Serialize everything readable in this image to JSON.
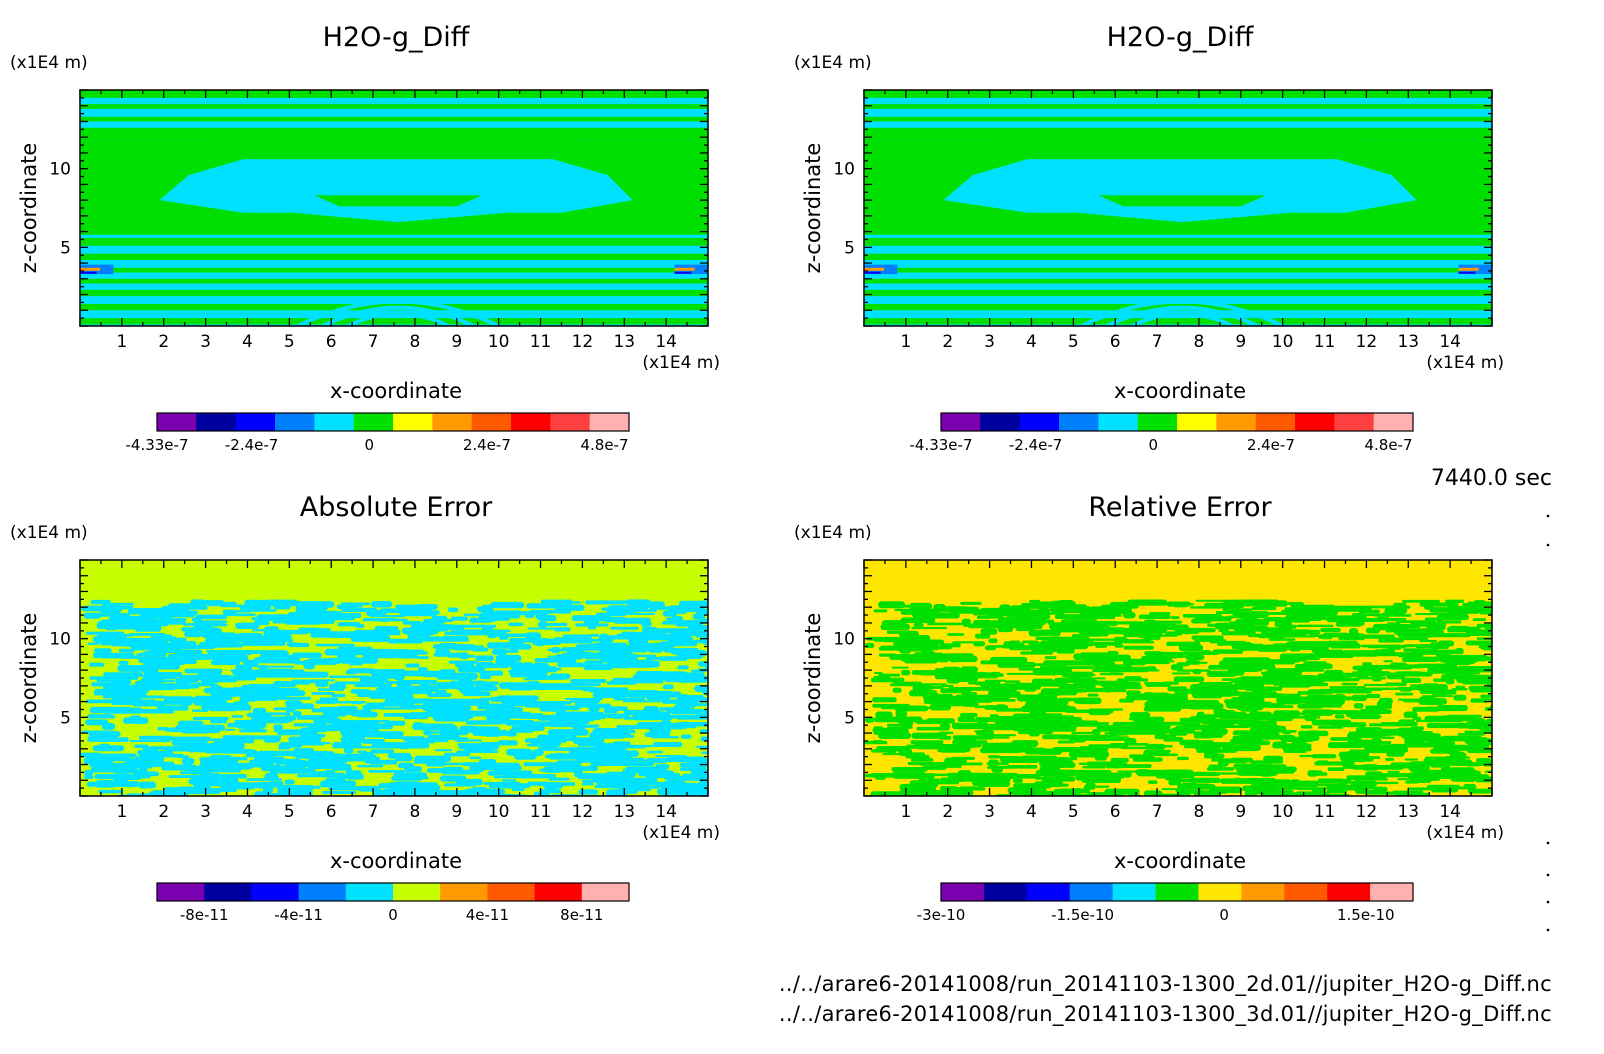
{
  "time_label": "7440.0 sec",
  "file_paths": [
    "../../arare6-20141008/run_20141103-1300_2d.01//jupiter_H2O-g_Diff.nc",
    "../../arare6-20141008/run_20141103-1300_3d.01//jupiter_H2O-g_Diff.nc"
  ],
  "chart_data": [
    {
      "type": "heatmap",
      "title": "H2O-g_Diff",
      "xlabel": "x-coordinate",
      "ylabel": "z-coordinate",
      "x_unit": "(x1E4 m)",
      "y_unit": "(x1E4 m)",
      "xlim": [
        0,
        15
      ],
      "ylim": [
        0,
        15
      ],
      "x_ticks": [
        1,
        2,
        3,
        4,
        5,
        6,
        7,
        8,
        9,
        10,
        11,
        12,
        13,
        14
      ],
      "y_ticks": [
        5,
        10
      ],
      "pattern": "layered",
      "colorbar": {
        "colors": [
          "#7b00b0",
          "#0000a0",
          "#0000ff",
          "#0080ff",
          "#00e0ff",
          "#00e000",
          "#ffff00",
          "#ff9a00",
          "#ff5a00",
          "#ff0000",
          "#ff4040",
          "#ffb0b0"
        ],
        "tick_labels": [
          "-4.33e-7",
          "-2.4e-7",
          "0",
          "2.4e-7",
          "4.8e-7"
        ],
        "tick_values": [
          -4.33e-07,
          -2.4e-07,
          0,
          2.4e-07,
          4.8e-07
        ],
        "range": [
          -4.33e-07,
          5.3e-07
        ]
      }
    },
    {
      "type": "heatmap",
      "title": "H2O-g_Diff",
      "xlabel": "x-coordinate",
      "ylabel": "z-coordinate",
      "x_unit": "(x1E4 m)",
      "y_unit": "(x1E4 m)",
      "xlim": [
        0,
        15
      ],
      "ylim": [
        0,
        15
      ],
      "x_ticks": [
        1,
        2,
        3,
        4,
        5,
        6,
        7,
        8,
        9,
        10,
        11,
        12,
        13,
        14
      ],
      "y_ticks": [
        5,
        10
      ],
      "pattern": "layered",
      "colorbar": {
        "colors": [
          "#7b00b0",
          "#0000a0",
          "#0000ff",
          "#0080ff",
          "#00e0ff",
          "#00e000",
          "#ffff00",
          "#ff9a00",
          "#ff5a00",
          "#ff0000",
          "#ff4040",
          "#ffb0b0"
        ],
        "tick_labels": [
          "-4.33e-7",
          "-2.4e-7",
          "0",
          "2.4e-7",
          "4.8e-7"
        ],
        "tick_values": [
          -4.33e-07,
          -2.4e-07,
          0,
          2.4e-07,
          4.8e-07
        ],
        "range": [
          -4.33e-07,
          5.3e-07
        ]
      }
    },
    {
      "type": "heatmap",
      "title": "Absolute Error",
      "xlabel": "x-coordinate",
      "ylabel": "z-coordinate",
      "x_unit": "(x1E4 m)",
      "y_unit": "(x1E4 m)",
      "xlim": [
        0,
        15
      ],
      "ylim": [
        0,
        15
      ],
      "x_ticks": [
        1,
        2,
        3,
        4,
        5,
        6,
        7,
        8,
        9,
        10,
        11,
        12,
        13,
        14
      ],
      "y_ticks": [
        5,
        10
      ],
      "pattern": "noise",
      "noise_colors": [
        "#c8ff00",
        "#00e0ff"
      ],
      "top_band_color": "#c8ff00",
      "top_band_from_z": 12.5,
      "colorbar": {
        "colors": [
          "#7b00b0",
          "#0000a0",
          "#0000ff",
          "#0080ff",
          "#00e0ff",
          "#c8ff00",
          "#ff9a00",
          "#ff5a00",
          "#ff0000",
          "#ffb0b0"
        ],
        "tick_labels": [
          "-8e-11",
          "-4e-11",
          "0",
          "4e-11",
          "8e-11"
        ],
        "tick_values": [
          -8e-11,
          -4e-11,
          0,
          4e-11,
          8e-11
        ],
        "range": [
          -1e-10,
          1e-10
        ]
      }
    },
    {
      "type": "heatmap",
      "title": "Relative Error",
      "xlabel": "x-coordinate",
      "ylabel": "z-coordinate",
      "x_unit": "(x1E4 m)",
      "y_unit": "(x1E4 m)",
      "xlim": [
        0,
        15
      ],
      "ylim": [
        0,
        15
      ],
      "x_ticks": [
        1,
        2,
        3,
        4,
        5,
        6,
        7,
        8,
        9,
        10,
        11,
        12,
        13,
        14
      ],
      "y_ticks": [
        5,
        10
      ],
      "pattern": "noise",
      "noise_colors": [
        "#ffe600",
        "#00e000"
      ],
      "top_band_color": "#ffe600",
      "top_band_from_z": 12.5,
      "colorbar": {
        "colors": [
          "#7b00b0",
          "#0000a0",
          "#0000ff",
          "#0080ff",
          "#00e0ff",
          "#00e000",
          "#ffe600",
          "#ff9a00",
          "#ff5a00",
          "#ff0000",
          "#ffb0b0"
        ],
        "tick_labels": [
          "-3e-10",
          "-1.5e-10",
          "0",
          "1.5e-10"
        ],
        "tick_values": [
          -3e-10,
          -1.5e-10,
          0,
          1.5e-10
        ],
        "range": [
          -3e-10,
          2e-10
        ]
      }
    }
  ]
}
